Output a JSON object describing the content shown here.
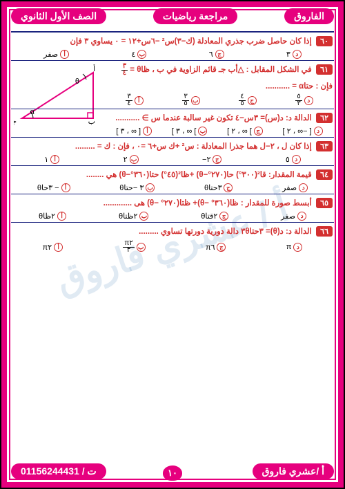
{
  "header": {
    "brand": "الفاروق",
    "subject": "مراجعة رياضيات",
    "grade": "الصف الأول الثانوي"
  },
  "watermark": "أ / عشري فاروق",
  "footer": {
    "author": "أ /عشري فاروق",
    "phone_label": "ت /",
    "phone": "01156244431",
    "page": "١٠"
  },
  "questions": [
    {
      "num": "٦٠",
      "text": "إذا كان حاصل ضرب جذري المعادلة  (ك−٣)س² −٦س+١٢ = ٠ يساوي ٣ فإن",
      "opts": [
        "صفر",
        "٤",
        "٦",
        "٣"
      ],
      "markers": [
        "أ",
        "ب",
        "ج",
        "د"
      ]
    },
    {
      "num": "٦١",
      "text": "في الشكل المقابل : △أب جـ  قائم الزاوية في  ب  ، ظاθ = ",
      "extra": "فإن :   حتاα = ...........",
      "opts": [
        "٣/٤",
        "٣/٥",
        "٤/٥",
        "٥/٣"
      ],
      "markers": [
        "أ",
        "ب",
        "ج",
        "د"
      ],
      "hasDiagram": true
    },
    {
      "num": "٦٢",
      "text": "الدالة د: د(س)= ٣س−٤  تكون غير سالبة عندما  س ∋ ...........",
      "opts": [
        "[ ∞ ، ٣ ]",
        "] ∞ ، ٣ ]",
        "] ∞ ، ٢ ]",
        "[ −∞ ، ٢ ]"
      ],
      "markers": [
        "أ",
        "ب",
        "ج",
        "د"
      ]
    },
    {
      "num": "٦٣",
      "text": "إذا كان ل ، ٢−ل  هما جذرا المعادلة : س² +ك س+٦ =٠ ، فإن : ك = .........",
      "opts": [
        "١",
        "٢",
        "٢−",
        "٥"
      ],
      "markers": [
        "أ",
        "ب",
        "ج",
        "د"
      ]
    },
    {
      "num": "٦٤",
      "text": "قيمة المقدار: قا²(٣٠٠°) حا(٢٧٠°−θ) +ظا²(٤٥°) حتا(٣٦٠°−θ) هي ........",
      "opts": [
        "− ٣حاθ",
        "٣ −حتاθ",
        "٣حتاθ",
        "صفر"
      ],
      "markers": [
        "أ",
        "ب",
        "ج",
        "د"
      ]
    },
    {
      "num": "٦٥",
      "text": "أبسط صورة للمقدار :  ظا(٣٦٠° −θ)+ ظتا(٢٧٠° −θ)  هى .............",
      "opts": [
        "٢ظاθ",
        "٢ظتاθ",
        "٢قتاθ",
        "صفر"
      ],
      "markers": [
        "أ",
        "ب",
        "ج",
        "د"
      ]
    },
    {
      "num": "٦٦",
      "text": "الدالة د: د(θ)= ٣حتا٣θ دالة دورية دورتها تساوي .........",
      "opts": [
        "π٢",
        "π٢/٣",
        "π٦",
        "π"
      ],
      "markers": [
        "أ",
        "ب",
        "ج",
        "د"
      ]
    }
  ],
  "diagram": {
    "stroke": "#e6007e",
    "labels": {
      "A": "أ",
      "B": "ب",
      "C": "جـ",
      "theta": "θ",
      "alpha": "α"
    }
  }
}
